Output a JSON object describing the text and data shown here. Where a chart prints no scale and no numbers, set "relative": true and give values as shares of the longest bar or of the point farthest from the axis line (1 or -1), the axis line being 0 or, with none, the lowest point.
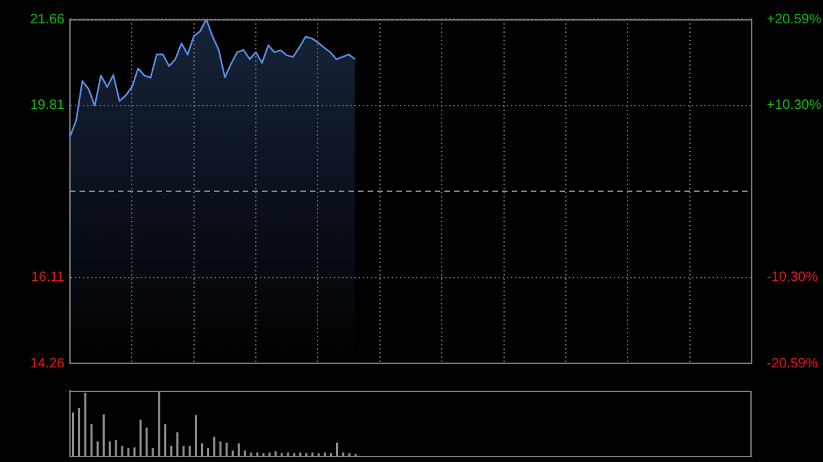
{
  "chart_data": [
    {
      "type": "area",
      "categories": [
        null,
        null,
        null,
        null,
        null,
        null,
        null,
        null,
        null,
        null,
        null,
        null,
        null,
        null,
        null,
        null,
        null,
        null,
        null,
        null,
        null,
        null,
        null,
        null,
        null,
        null,
        null,
        null,
        null,
        null,
        null,
        null,
        null,
        null,
        null,
        null,
        null,
        null,
        null,
        null,
        null,
        null,
        null,
        null,
        null,
        null,
        null,
        null,
        null,
        null,
        null,
        null,
        null,
        null,
        null,
        null,
        null,
        null,
        null,
        null,
        null,
        null,
        null,
        null,
        null,
        null,
        null,
        null,
        null,
        null,
        null,
        null,
        null,
        null,
        null,
        null,
        null,
        null,
        null,
        null,
        null,
        null,
        null,
        null,
        null,
        null,
        null,
        null,
        null,
        null,
        null,
        null,
        null,
        null,
        null,
        null,
        null,
        null,
        null,
        null,
        null,
        null,
        null,
        null,
        null,
        null,
        null,
        null,
        null,
        null,
        null
      ],
      "series": [
        {
          "color": "#5b8ee6",
          "values": [
            19.13,
            19.48,
            20.33,
            20.16,
            19.8,
            20.45,
            20.2,
            20.46,
            19.9,
            20.02,
            20.2,
            20.6,
            20.45,
            20.4,
            20.9,
            20.9,
            20.65,
            20.8,
            21.14,
            20.9,
            21.3,
            21.4,
            21.66,
            21.29,
            21.0,
            20.41,
            20.7,
            20.95,
            21.0,
            20.8,
            20.95,
            20.72,
            21.1,
            20.95,
            20.99,
            20.88,
            20.85,
            21.05,
            21.28,
            21.25,
            21.16,
            21.05,
            20.95,
            20.8,
            20.85,
            20.9,
            20.8,
            null,
            null,
            null,
            null,
            null,
            null,
            null,
            null,
            null,
            null,
            null,
            null,
            null,
            null,
            null,
            null,
            null,
            null,
            null,
            null,
            null,
            null,
            null,
            null,
            null,
            null,
            null,
            null,
            null,
            null,
            null,
            null,
            null,
            null,
            null,
            null,
            null,
            null,
            null,
            null,
            null,
            null,
            null,
            null,
            null,
            null,
            null,
            null,
            null,
            null,
            null,
            null,
            null,
            null,
            null,
            null,
            null,
            null,
            null,
            null,
            null,
            null,
            null,
            null
          ]
        }
      ],
      "ylim": [
        14.26,
        21.66
      ],
      "yticks": [
        14.26,
        16.11,
        19.81,
        21.66
      ],
      "y2lim": [
        -20.59,
        20.59
      ],
      "y2ticks": [
        {
          "value": -20.59,
          "label": "-20.59%"
        },
        {
          "value": -10.3,
          "label": "-10.30%"
        },
        {
          "value": 10.3,
          "label": "+10.30%"
        },
        {
          "value": 20.59,
          "label": "+20.59%"
        }
      ],
      "ref_lines": [
        {
          "axis": "y",
          "value": 17.96,
          "line_style": "dashed"
        }
      ],
      "grid": true,
      "tick_labels": "y",
      "legend": false,
      "marker": "none"
    },
    {
      "type": "bar",
      "relative": true,
      "categories": [
        null,
        null,
        null,
        null,
        null,
        null,
        null,
        null,
        null,
        null,
        null,
        null,
        null,
        null,
        null,
        null,
        null,
        null,
        null,
        null,
        null,
        null,
        null,
        null,
        null,
        null,
        null,
        null,
        null,
        null,
        null,
        null,
        null,
        null,
        null,
        null,
        null,
        null,
        null,
        null,
        null,
        null,
        null,
        null,
        null,
        null,
        null,
        null,
        null,
        null,
        null,
        null,
        null,
        null,
        null,
        null,
        null,
        null,
        null,
        null,
        null,
        null,
        null,
        null,
        null,
        null,
        null,
        null,
        null,
        null,
        null,
        null,
        null,
        null,
        null,
        null,
        null,
        null,
        null,
        null,
        null,
        null,
        null,
        null,
        null,
        null,
        null,
        null,
        null,
        null,
        null,
        null,
        null,
        null,
        null,
        null,
        null,
        null,
        null,
        null,
        null,
        null,
        null,
        null,
        null,
        null,
        null,
        null,
        null,
        null,
        null
      ],
      "series": [
        {
          "color": "#8c8c8c",
          "values": [
            0.67,
            0.74,
            0.97,
            0.49,
            0.23,
            0.64,
            0.23,
            0.25,
            0.16,
            0.13,
            0.14,
            0.56,
            0.44,
            0.13,
            1,
            0.49,
            0.16,
            0.37,
            0.16,
            0.16,
            0.63,
            0.2,
            0.13,
            0.3,
            0.23,
            0.21,
            0.09,
            0.2,
            0.09,
            0.06,
            0.06,
            0.05,
            0.06,
            0.08,
            0.05,
            0.06,
            0.05,
            0.06,
            0.05,
            0.06,
            0.05,
            0.06,
            0.05,
            0.21,
            0.06,
            0.05,
            0.04,
            null,
            null,
            null,
            null,
            null,
            null,
            null,
            null,
            null,
            null,
            null,
            null,
            null,
            null,
            null,
            null,
            null,
            null,
            null,
            null,
            null,
            null,
            null,
            null,
            null,
            null,
            null,
            null,
            null,
            null,
            null,
            null,
            null,
            null,
            null,
            null,
            null,
            null,
            null,
            null,
            null,
            null,
            null,
            null,
            null,
            null,
            null,
            null,
            null,
            null,
            null,
            null,
            null,
            null,
            null,
            null,
            null,
            null,
            null,
            null,
            null,
            null,
            null,
            null
          ]
        }
      ],
      "tick_labels": false,
      "legend": false
    }
  ]
}
